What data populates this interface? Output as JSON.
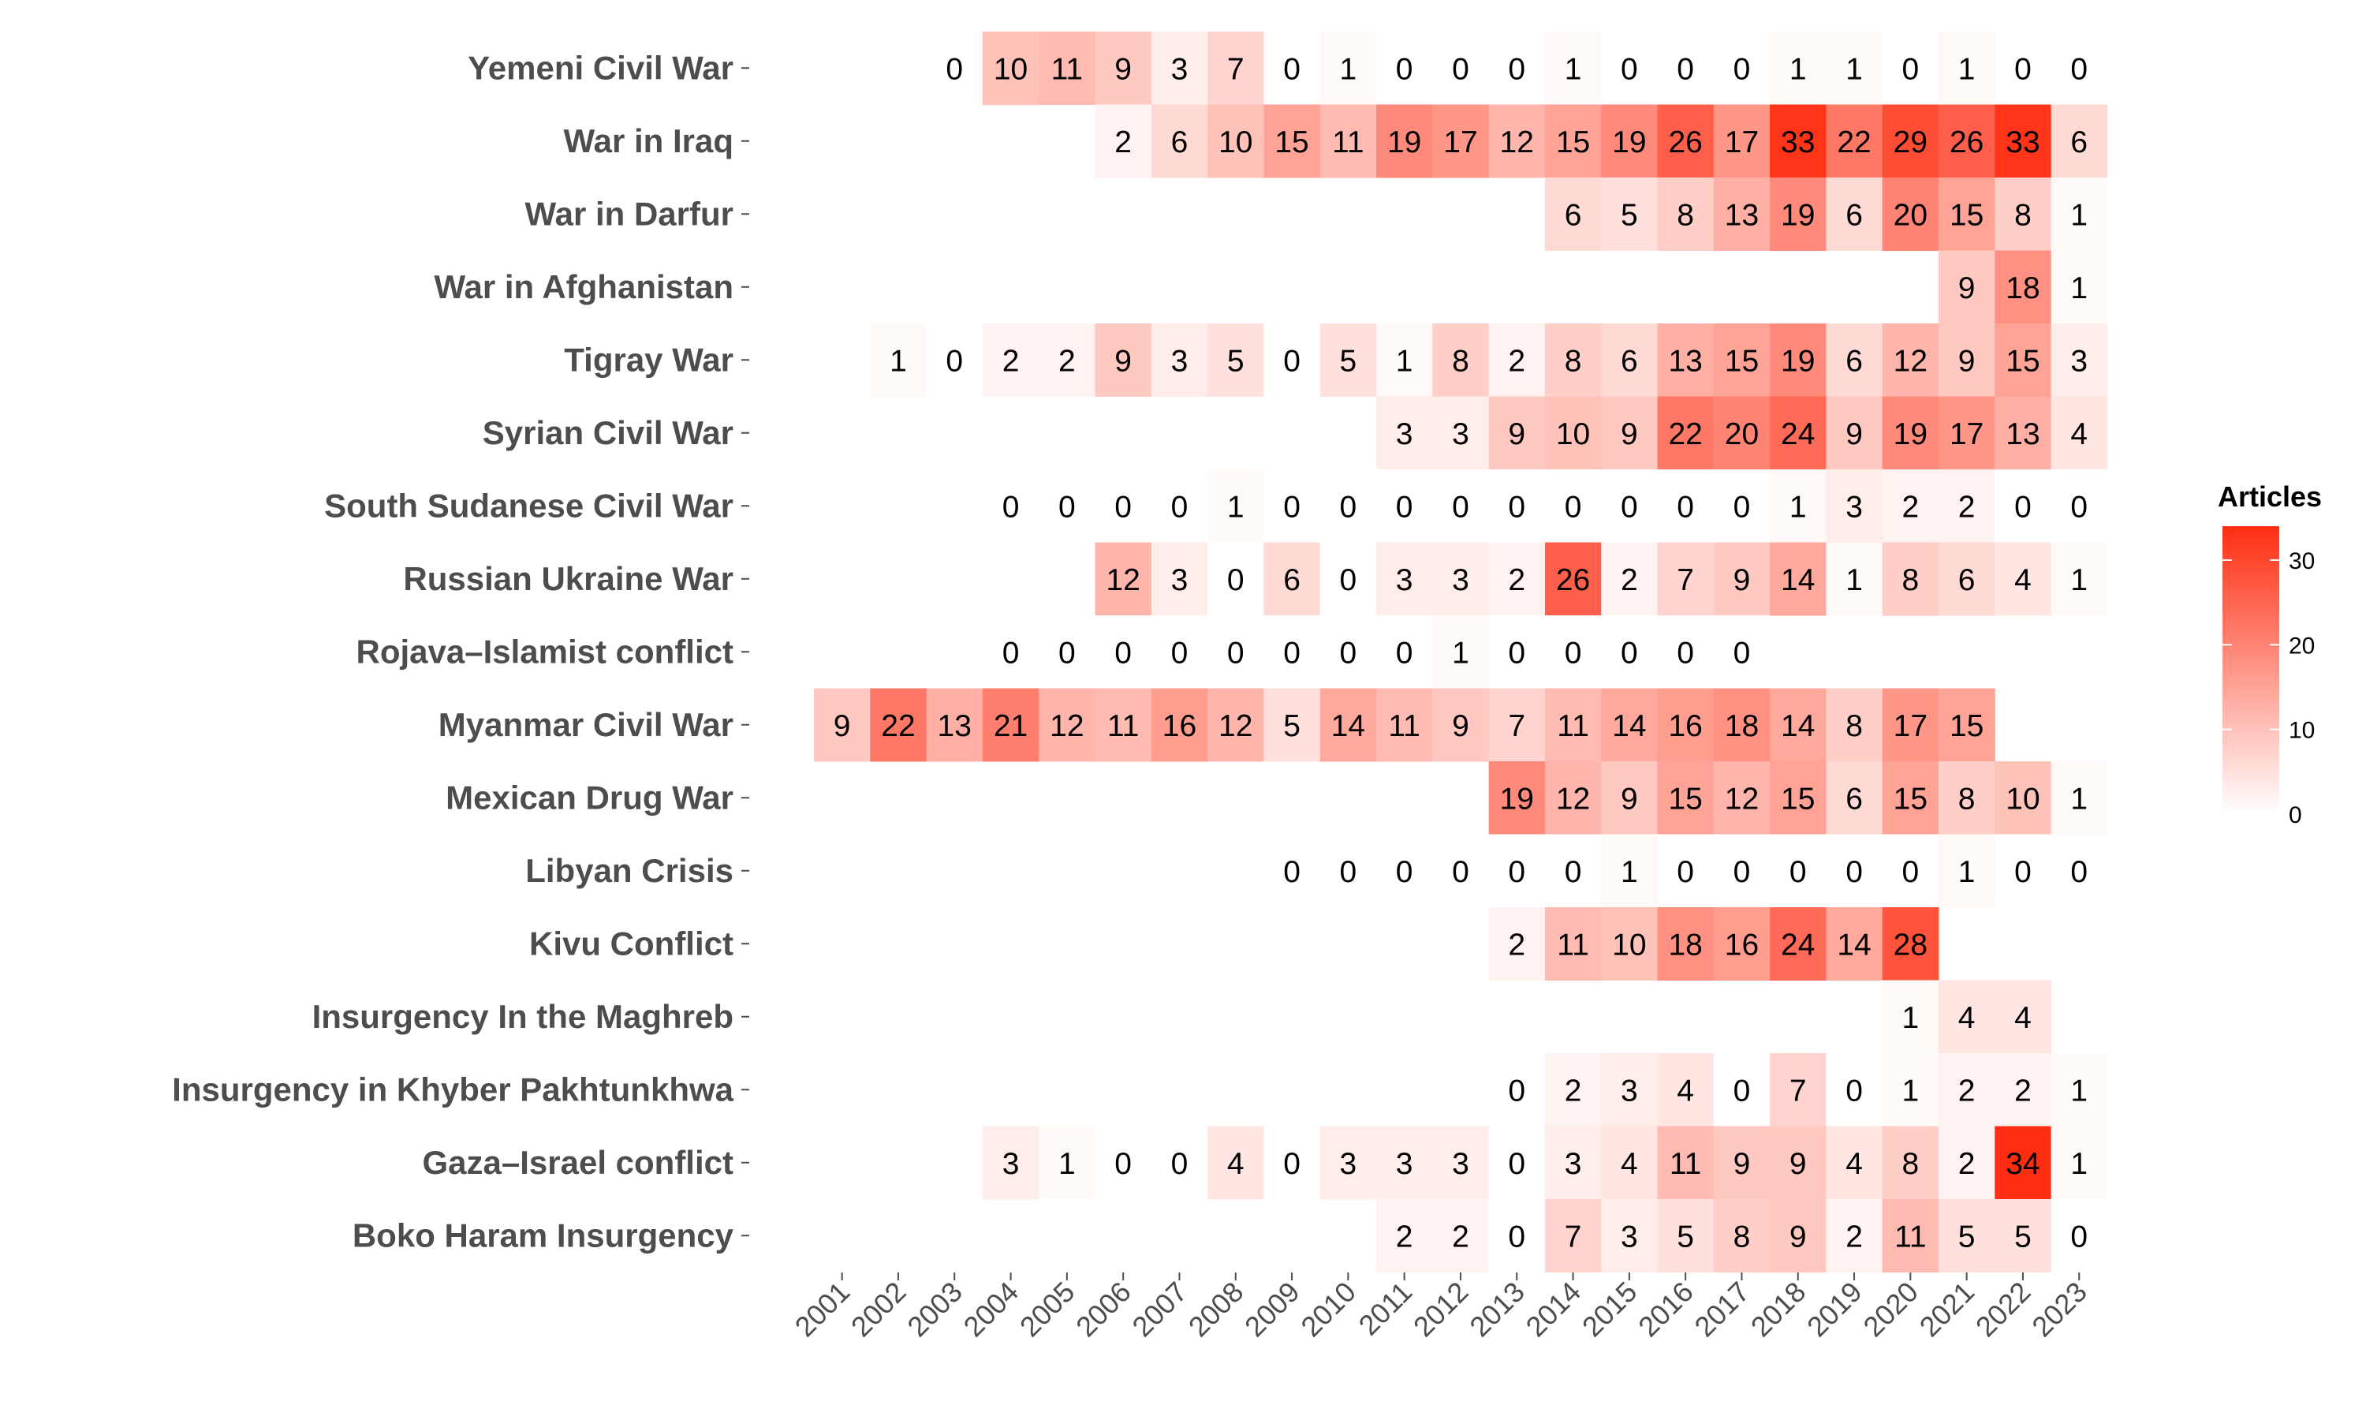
{
  "chart_data": {
    "type": "heatmap",
    "title": "",
    "xlabel": "",
    "ylabel": "",
    "legend_title": "Articles",
    "legend_placement": "right",
    "legend_ticks": [
      0,
      10,
      20,
      30
    ],
    "value_range": [
      0,
      34
    ],
    "color_low": "#ffffff",
    "color_high": "#ff2e12",
    "grid": false,
    "x": [
      "2001",
      "2002",
      "2003",
      "2004",
      "2005",
      "2006",
      "2007",
      "2008",
      "2009",
      "2010",
      "2011",
      "2012",
      "2013",
      "2014",
      "2015",
      "2016",
      "2017",
      "2018",
      "2019",
      "2020",
      "2021",
      "2022",
      "2023"
    ],
    "y": [
      "Yemeni Civil War",
      "War in Iraq",
      "War in Darfur",
      "War in Afghanistan",
      "Tigray War",
      "Syrian Civil War",
      "South Sudanese Civil War",
      "Russian Ukraine War",
      "Rojava–Islamist conflict",
      "Myanmar Civil War",
      "Mexican Drug War",
      "Libyan Crisis",
      "Kivu Conflict",
      "Insurgency In the Maghreb",
      "Insurgency in Khyber Pakhtunkhwa",
      "Gaza–Israel conflict",
      "Boko Haram Insurgency"
    ],
    "values": [
      [
        null,
        null,
        0,
        10,
        11,
        9,
        3,
        7,
        0,
        1,
        0,
        0,
        0,
        1,
        0,
        0,
        0,
        1,
        1,
        0,
        1,
        0,
        0
      ],
      [
        null,
        null,
        null,
        null,
        null,
        2,
        6,
        10,
        15,
        11,
        19,
        17,
        12,
        15,
        19,
        26,
        17,
        33,
        22,
        29,
        26,
        33,
        6
      ],
      [
        null,
        null,
        null,
        null,
        null,
        null,
        null,
        null,
        null,
        null,
        null,
        null,
        null,
        6,
        5,
        8,
        13,
        19,
        6,
        20,
        15,
        8,
        1
      ],
      [
        null,
        null,
        null,
        null,
        null,
        null,
        null,
        null,
        null,
        null,
        null,
        null,
        null,
        null,
        null,
        null,
        null,
        null,
        null,
        null,
        9,
        18,
        1
      ],
      [
        null,
        1,
        0,
        2,
        2,
        9,
        3,
        5,
        0,
        5,
        1,
        8,
        2,
        8,
        6,
        13,
        15,
        19,
        6,
        12,
        9,
        15,
        3
      ],
      [
        null,
        null,
        null,
        null,
        null,
        null,
        null,
        null,
        null,
        null,
        3,
        3,
        9,
        10,
        9,
        22,
        20,
        24,
        9,
        19,
        17,
        13,
        4
      ],
      [
        null,
        null,
        null,
        0,
        0,
        0,
        0,
        1,
        0,
        0,
        0,
        0,
        0,
        0,
        0,
        0,
        0,
        1,
        3,
        2,
        2,
        0,
        0
      ],
      [
        null,
        null,
        null,
        null,
        null,
        12,
        3,
        0,
        6,
        0,
        3,
        3,
        2,
        26,
        2,
        7,
        9,
        14,
        1,
        8,
        6,
        4,
        1
      ],
      [
        null,
        null,
        null,
        0,
        0,
        0,
        0,
        0,
        0,
        0,
        0,
        1,
        0,
        0,
        0,
        0,
        0,
        null,
        null,
        null,
        null,
        null,
        null
      ],
      [
        9,
        22,
        13,
        21,
        12,
        11,
        16,
        12,
        5,
        14,
        11,
        9,
        7,
        11,
        14,
        16,
        18,
        14,
        8,
        17,
        15,
        null,
        null
      ],
      [
        null,
        null,
        null,
        null,
        null,
        null,
        null,
        null,
        null,
        null,
        null,
        null,
        19,
        12,
        9,
        15,
        12,
        15,
        6,
        15,
        8,
        10,
        1
      ],
      [
        null,
        null,
        null,
        null,
        null,
        null,
        null,
        null,
        0,
        0,
        0,
        0,
        0,
        0,
        1,
        0,
        0,
        0,
        0,
        0,
        1,
        0,
        0
      ],
      [
        null,
        null,
        null,
        null,
        null,
        null,
        null,
        null,
        null,
        null,
        null,
        null,
        2,
        11,
        10,
        18,
        16,
        24,
        14,
        28,
        null,
        null,
        null
      ],
      [
        null,
        null,
        null,
        null,
        null,
        null,
        null,
        null,
        null,
        null,
        null,
        null,
        null,
        null,
        null,
        null,
        null,
        null,
        null,
        1,
        4,
        4,
        null
      ],
      [
        null,
        null,
        null,
        null,
        null,
        null,
        null,
        null,
        null,
        null,
        null,
        null,
        0,
        2,
        3,
        4,
        0,
        7,
        0,
        1,
        2,
        2,
        1
      ],
      [
        null,
        null,
        null,
        3,
        1,
        0,
        0,
        4,
        0,
        3,
        3,
        3,
        0,
        3,
        4,
        11,
        9,
        9,
        4,
        8,
        2,
        34,
        1
      ],
      [
        null,
        null,
        null,
        null,
        null,
        null,
        null,
        null,
        null,
        null,
        2,
        2,
        0,
        7,
        3,
        5,
        8,
        9,
        2,
        11,
        5,
        5,
        0
      ]
    ]
  }
}
